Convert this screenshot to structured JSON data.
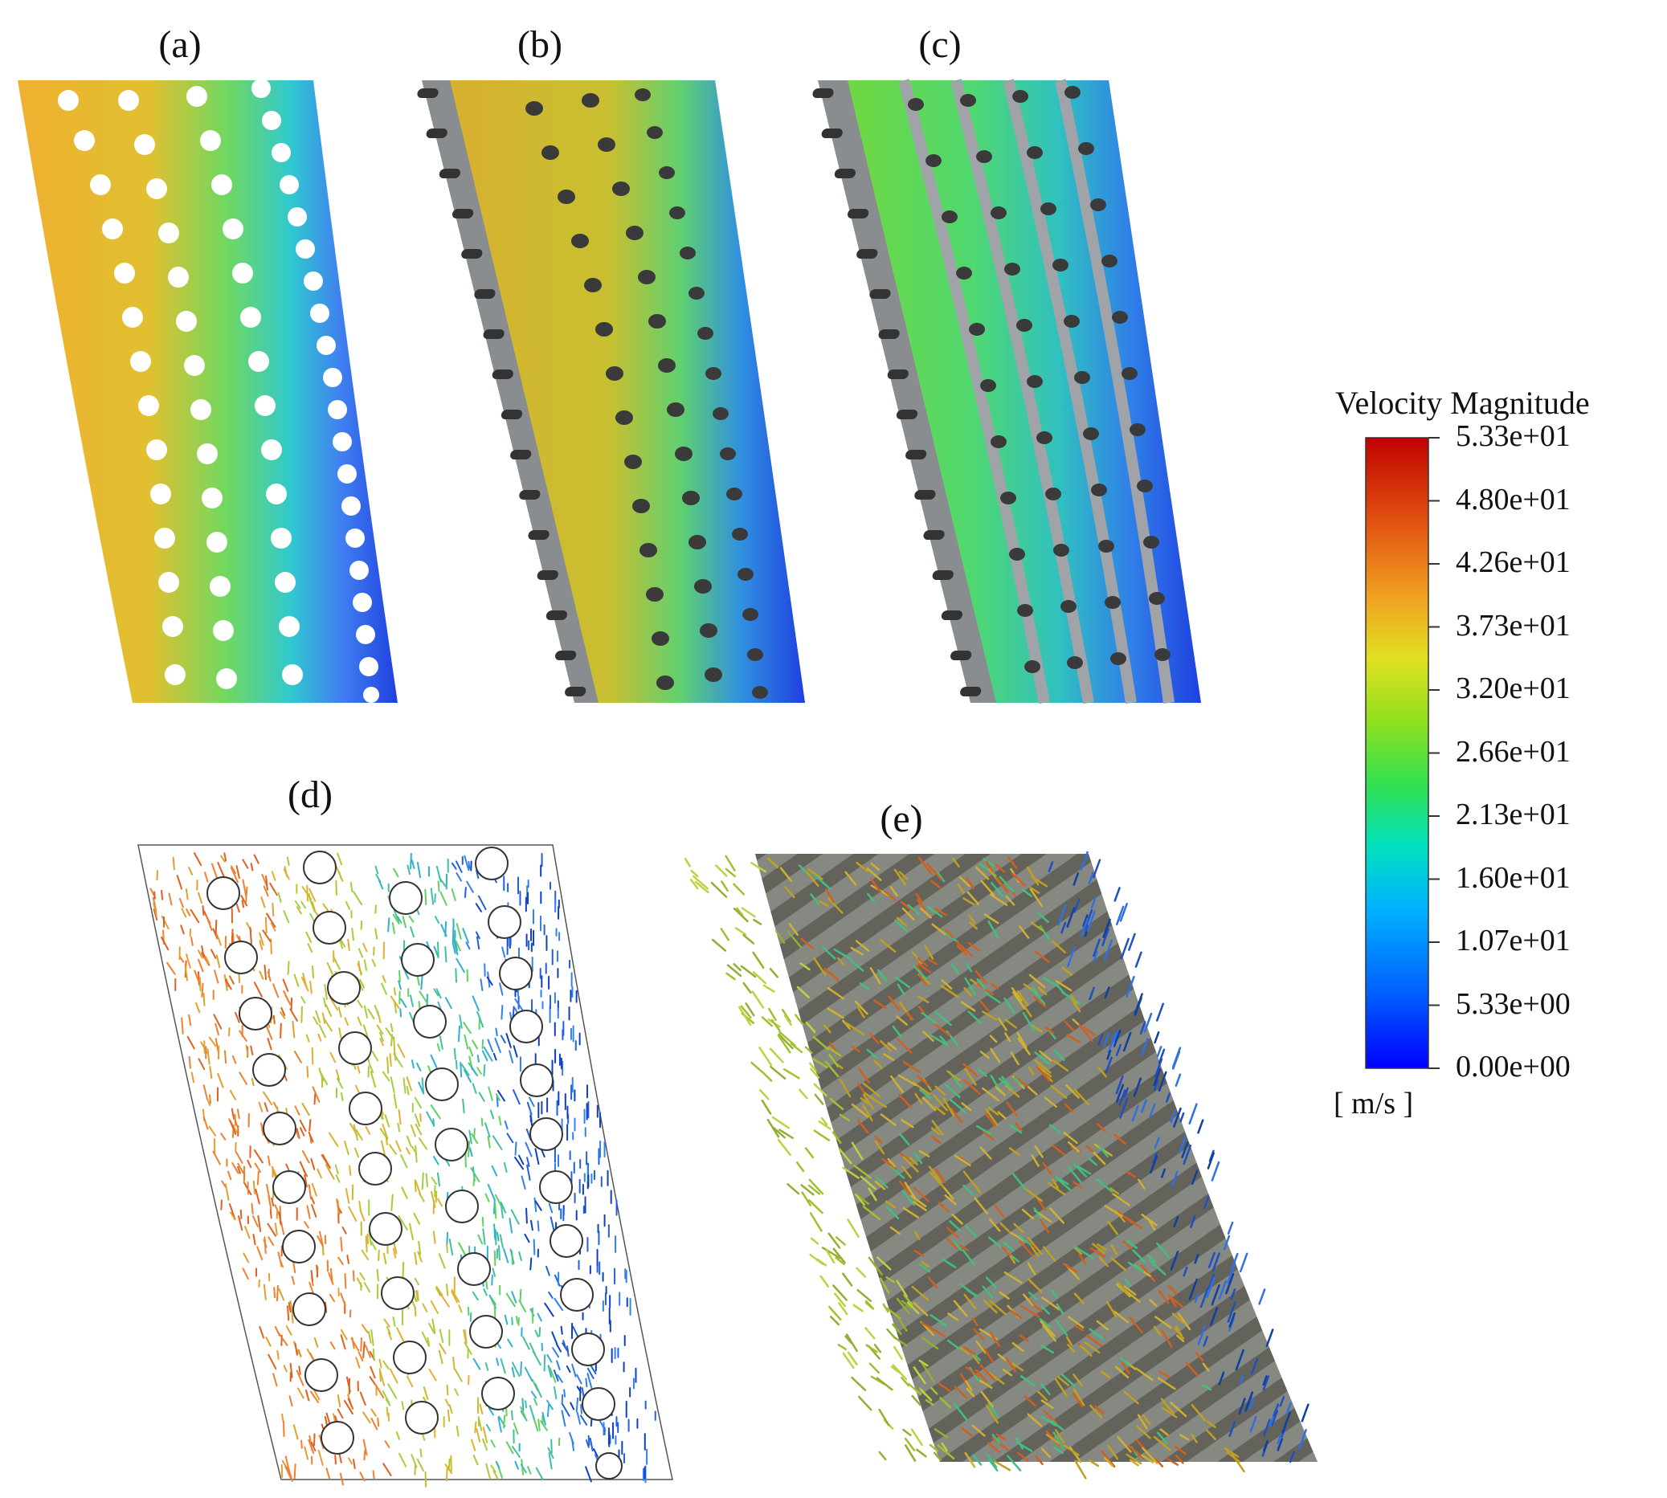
{
  "panels": {
    "a": "(a)",
    "b": "(b)",
    "c": "(c)",
    "d": "(d)",
    "e": "(e)"
  },
  "legend": {
    "title": "Velocity Magnitude",
    "units": "[ m/s ]",
    "ticks": [
      "5.33e+01",
      "4.80e+01",
      "4.26e+01",
      "3.73e+01",
      "3.20e+01",
      "2.66e+01",
      "2.13e+01",
      "1.60e+01",
      "1.07e+01",
      "5.33e+00",
      "0.00e+00"
    ],
    "min": 0,
    "max": 53.3,
    "colors": [
      "#0000ff",
      "#0070ff",
      "#00c8ff",
      "#00e0a0",
      "#40e040",
      "#b0e020",
      "#f0d020",
      "#f09020",
      "#e05010",
      "#c01000"
    ]
  }
}
